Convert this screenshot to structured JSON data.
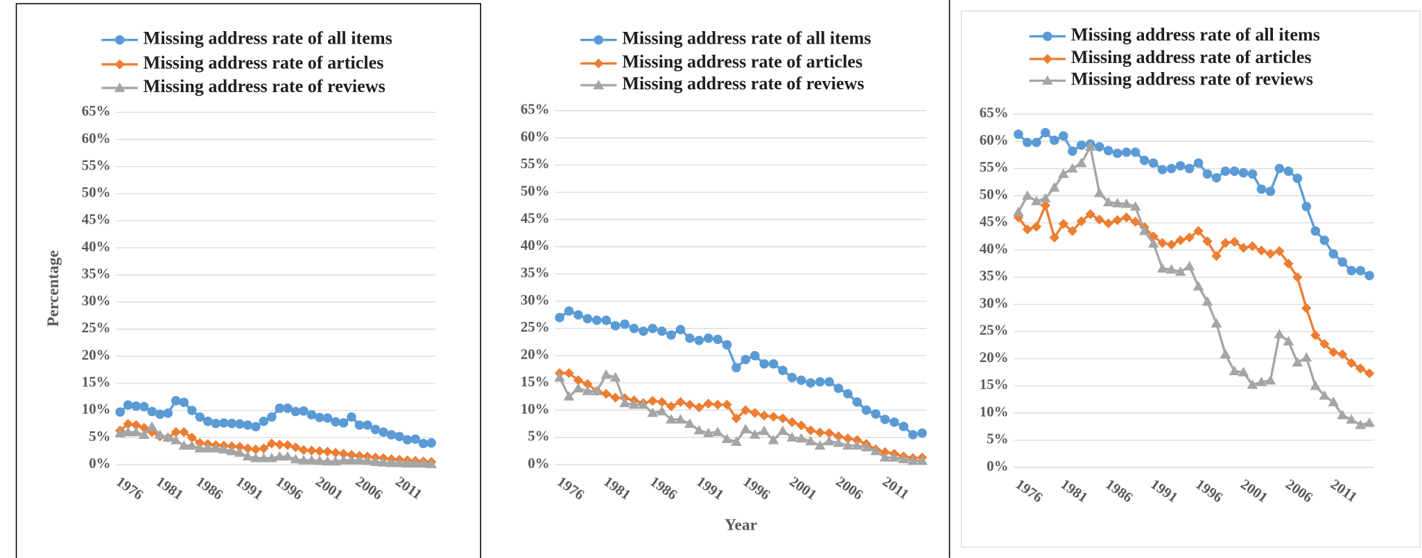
{
  "chart_data": [
    {
      "type": "line",
      "ylabel": "Percentage",
      "categories": [
        null,
        "1976",
        null,
        null,
        null,
        null,
        "1981",
        null,
        null,
        null,
        null,
        "1986",
        null,
        null,
        null,
        null,
        "1991",
        null,
        null,
        null,
        null,
        "1996",
        null,
        null,
        null,
        null,
        "2001",
        null,
        null,
        null,
        null,
        "2006",
        null,
        null,
        null,
        null,
        "2011",
        null,
        null,
        null
      ],
      "ylim": [
        0,
        65
      ],
      "yticks": [
        {
          "value": 0,
          "label": "0%"
        },
        {
          "value": 5,
          "label": "5%"
        },
        {
          "value": 10,
          "label": "10%"
        },
        {
          "value": 15,
          "label": "15%"
        },
        {
          "value": 20,
          "label": "20%"
        },
        {
          "value": 25,
          "label": "25%"
        },
        {
          "value": 30,
          "label": "30%"
        },
        {
          "value": 35,
          "label": "35%"
        },
        {
          "value": 40,
          "label": "40%"
        },
        {
          "value": 45,
          "label": "45%"
        },
        {
          "value": 50,
          "label": "50%"
        },
        {
          "value": 55,
          "label": "55%"
        },
        {
          "value": 60,
          "label": "60%"
        },
        {
          "value": 65,
          "label": "65%"
        }
      ],
      "grid": true,
      "series": [
        {
          "name": "Missing address rate of all items",
          "color": "#5b9bd5",
          "marker": "circle",
          "values": [
            9.7,
            11,
            10.8,
            10.7,
            9.8,
            9.3,
            9.5,
            11.8,
            11.5,
            10,
            8.8,
            8,
            7.6,
            7.7,
            7.6,
            7.5,
            7.3,
            7,
            8,
            8.8,
            10.4,
            10.4,
            9.8,
            9.9,
            9.2,
            8.7,
            8.6,
            7.9,
            7.7,
            8.8,
            7.3,
            7.3,
            6.5,
            6,
            5.5,
            5.2,
            4.6,
            4.7,
            3.9,
            4.0
          ]
        },
        {
          "name": "Missing address rate of articles",
          "color": "#ed7d31",
          "marker": "diamond",
          "values": [
            6.3,
            7.5,
            7.3,
            6.8,
            6,
            5.2,
            5,
            6,
            6,
            5,
            4,
            3.8,
            3.6,
            3.5,
            3.4,
            3.3,
            3,
            2.8,
            3,
            3.9,
            3.7,
            3.6,
            3.2,
            2.7,
            2.6,
            2.5,
            2.4,
            2.2,
            2,
            1.8,
            1.6,
            1.5,
            1.3,
            1.2,
            1,
            0.9,
            0.8,
            0.7,
            0.6,
            0.5
          ]
        },
        {
          "name": "Missing address rate of reviews",
          "color": "#a5a5a5",
          "marker": "triangle",
          "values": [
            5.8,
            6,
            6,
            5.5,
            7,
            5.5,
            5,
            4.5,
            3.5,
            3.5,
            3,
            3,
            3,
            2.8,
            2.5,
            2.2,
            1.5,
            1.2,
            1.2,
            1.2,
            1.5,
            1.5,
            1,
            0.8,
            0.8,
            0.7,
            0.6,
            0.6,
            0.8,
            0.8,
            0.8,
            0.7,
            0.5,
            0.4,
            0.3,
            0.3,
            0.2,
            0.2,
            0.2,
            0.1
          ]
        }
      ]
    },
    {
      "type": "line",
      "xlabel": "Year",
      "categories": [
        null,
        "1976",
        null,
        null,
        null,
        null,
        "1981",
        null,
        null,
        null,
        null,
        "1986",
        null,
        null,
        null,
        null,
        "1991",
        null,
        null,
        null,
        null,
        "1996",
        null,
        null,
        null,
        null,
        "2001",
        null,
        null,
        null,
        null,
        "2006",
        null,
        null,
        null,
        null,
        "2011",
        null,
        null,
        null
      ],
      "ylim": [
        0,
        65
      ],
      "yticks": [
        {
          "value": 0,
          "label": "0%"
        },
        {
          "value": 5,
          "label": "5%"
        },
        {
          "value": 10,
          "label": "10%"
        },
        {
          "value": 15,
          "label": "15%"
        },
        {
          "value": 20,
          "label": "20%"
        },
        {
          "value": 25,
          "label": "25%"
        },
        {
          "value": 30,
          "label": "30%"
        },
        {
          "value": 35,
          "label": "35%"
        },
        {
          "value": 40,
          "label": "40%"
        },
        {
          "value": 45,
          "label": "45%"
        },
        {
          "value": 50,
          "label": "50%"
        },
        {
          "value": 55,
          "label": "55%"
        },
        {
          "value": 60,
          "label": "60%"
        },
        {
          "value": 65,
          "label": "65%"
        }
      ],
      "grid": true,
      "series": [
        {
          "name": "Missing address rate of all items",
          "color": "#5b9bd5",
          "marker": "circle",
          "values": [
            27,
            28.2,
            27.5,
            26.8,
            26.5,
            26.5,
            25.5,
            25.8,
            25,
            24.5,
            25,
            24.5,
            23.8,
            24.8,
            23.2,
            22.8,
            23.2,
            23,
            22,
            17.8,
            19.3,
            20,
            18.5,
            18.5,
            17.3,
            16,
            15.5,
            15,
            15.2,
            15.2,
            14,
            13,
            11.5,
            10,
            9.3,
            8.3,
            7.8,
            7,
            5.5,
            5.8
          ]
        },
        {
          "name": "Missing address rate of articles",
          "color": "#ed7d31",
          "marker": "diamond",
          "values": [
            16.8,
            16.8,
            15.5,
            14.8,
            13.5,
            13,
            12.3,
            12.2,
            11.8,
            11.3,
            11.7,
            11.5,
            10.7,
            11.5,
            11,
            10.5,
            11.2,
            11,
            11,
            8.5,
            10,
            9.5,
            9,
            8.8,
            8.5,
            7.8,
            7.2,
            6.3,
            5.9,
            5.8,
            5.2,
            4.8,
            4.5,
            3.8,
            2.8,
            2.3,
            2,
            1.5,
            1.2,
            1.3
          ]
        },
        {
          "name": "Missing address rate of reviews",
          "color": "#a5a5a5",
          "marker": "triangle",
          "values": [
            16,
            12.5,
            14,
            13.5,
            13.5,
            16.5,
            16,
            11.3,
            11,
            11,
            9.5,
            9.8,
            8.3,
            8.3,
            7.5,
            6.3,
            5.8,
            6,
            4.7,
            4.2,
            6.5,
            5.5,
            6.2,
            4.5,
            6.2,
            5,
            4.8,
            4.3,
            3.5,
            4.3,
            4,
            3.5,
            3.5,
            3.2,
            2.5,
            1.3,
            1.3,
            1,
            0.7,
            0.7
          ]
        }
      ]
    },
    {
      "type": "line",
      "categories": [
        null,
        "1976",
        null,
        null,
        null,
        null,
        "1981",
        null,
        null,
        null,
        null,
        "1986",
        null,
        null,
        null,
        null,
        "1991",
        null,
        null,
        null,
        null,
        "1996",
        null,
        null,
        null,
        null,
        "2001",
        null,
        null,
        null,
        null,
        "2006",
        null,
        null,
        null,
        null,
        "2011",
        null,
        null,
        null
      ],
      "ylim": [
        0,
        65
      ],
      "yticks": [
        {
          "value": 0,
          "label": "0%"
        },
        {
          "value": 5,
          "label": "5%"
        },
        {
          "value": 10,
          "label": "10%"
        },
        {
          "value": 15,
          "label": "15%"
        },
        {
          "value": 20,
          "label": "20%"
        },
        {
          "value": 25,
          "label": "25%"
        },
        {
          "value": 30,
          "label": "30%"
        },
        {
          "value": 35,
          "label": "35%"
        },
        {
          "value": 40,
          "label": "40%"
        },
        {
          "value": 45,
          "label": "45%"
        },
        {
          "value": 50,
          "label": "50%"
        },
        {
          "value": 55,
          "label": "55%"
        },
        {
          "value": 60,
          "label": "60%"
        },
        {
          "value": 65,
          "label": "65%"
        }
      ],
      "grid": true,
      "series": [
        {
          "name": "Missing address rate of all items",
          "color": "#5b9bd5",
          "marker": "circle",
          "values": [
            61.3,
            59.8,
            59.8,
            61.6,
            60.2,
            61,
            58.2,
            59.3,
            59.5,
            59,
            58.3,
            57.8,
            58,
            58,
            56.5,
            56,
            54.8,
            55,
            55.5,
            55,
            56,
            54,
            53.3,
            54.5,
            54.5,
            54.2,
            54,
            51.2,
            50.8,
            55,
            54.5,
            53.2,
            48,
            43.5,
            41.8,
            39.3,
            37.8,
            36.2,
            36.2,
            35.3
          ]
        },
        {
          "name": "Missing address rate of articles",
          "color": "#ed7d31",
          "marker": "diamond",
          "values": [
            46,
            43.8,
            44.3,
            48.2,
            42.3,
            44.8,
            43.5,
            45.3,
            46.6,
            45.6,
            44.9,
            45.5,
            46,
            45.2,
            44.2,
            42.5,
            41.3,
            41,
            41.8,
            42.3,
            43.5,
            41.6,
            38.9,
            41.3,
            41.5,
            40.4,
            40.7,
            39.9,
            39.3,
            39.8,
            37.5,
            35,
            29.3,
            24.3,
            22.7,
            21.2,
            20.8,
            19.2,
            18.2,
            17.3
          ]
        },
        {
          "name": "Missing address rate of reviews",
          "color": "#a5a5a5",
          "marker": "triangle",
          "values": [
            47,
            50,
            49,
            49.5,
            51.5,
            54,
            55,
            56,
            59,
            50.5,
            48.8,
            48.6,
            48.5,
            48,
            43.5,
            41.2,
            36.6,
            36.4,
            36,
            37,
            33.3,
            30.5,
            26.5,
            20.8,
            17.7,
            17.5,
            15.2,
            15.7,
            16,
            24.5,
            23.2,
            19.3,
            20.2,
            15,
            13.2,
            12,
            9.6,
            8.8,
            7.8,
            8.2
          ]
        }
      ]
    }
  ]
}
